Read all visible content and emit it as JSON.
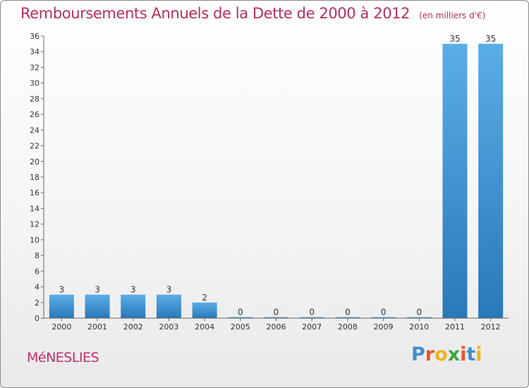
{
  "chart_data": {
    "type": "bar",
    "title": "Remboursements Annuels de la Dette de 2000 à 2012",
    "subtitle": "(en milliers d'€)",
    "categories": [
      "2000",
      "2001",
      "2002",
      "2003",
      "2004",
      "2005",
      "2006",
      "2007",
      "2008",
      "2009",
      "2010",
      "2011",
      "2012"
    ],
    "values": [
      3,
      3,
      3,
      3,
      2,
      0,
      0,
      0,
      0,
      0,
      0,
      35,
      35
    ],
    "value_labels": [
      "3",
      "3",
      "3",
      "3",
      "2",
      "0",
      "0",
      "0",
      "0",
      "0",
      "0",
      "35",
      "35"
    ],
    "ylim": [
      0,
      36
    ],
    "yticks": [
      "0",
      "2",
      "4",
      "6",
      "8",
      "10",
      "12",
      "14",
      "16",
      "18",
      "20",
      "22",
      "24",
      "26",
      "28",
      "30",
      "32",
      "34",
      "36"
    ],
    "grid": false,
    "bar_color": "#3f96d6"
  },
  "footer": {
    "commune": "MéNESLIES",
    "brand_letters": [
      "P",
      "r",
      "o",
      "x",
      "i",
      "t",
      "i"
    ],
    "brand_colors": [
      "#3f8fd0",
      "#e8542e",
      "#f2b21e",
      "#3aa63a",
      "#e8542e",
      "#3f8fd0",
      "#f2b21e"
    ]
  }
}
